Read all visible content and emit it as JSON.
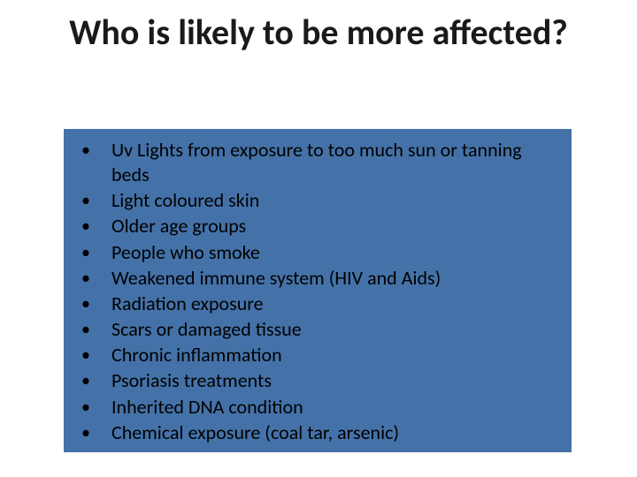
{
  "slide": {
    "background_color": "#ffffff",
    "title": "Who is likely to be more affected?",
    "title_fontsize": 40,
    "title_color": "#1a1a1a",
    "content_box": {
      "background_color": "#4472a8",
      "text_color": "#000000",
      "fontsize": 22,
      "bullet_char": "•",
      "items": [
        "Uv Lights from exposure to too much sun or tanning beds",
        "Light coloured skin",
        "Older age groups",
        "People who smoke",
        "Weakened immune system (HIV and Aids)",
        "Radiation exposure",
        "Scars or damaged tissue",
        "Chronic inflammation",
        "Psoriasis treatments",
        "Inherited DNA condition",
        "Chemical exposure (coal tar, arsenic)"
      ]
    }
  }
}
